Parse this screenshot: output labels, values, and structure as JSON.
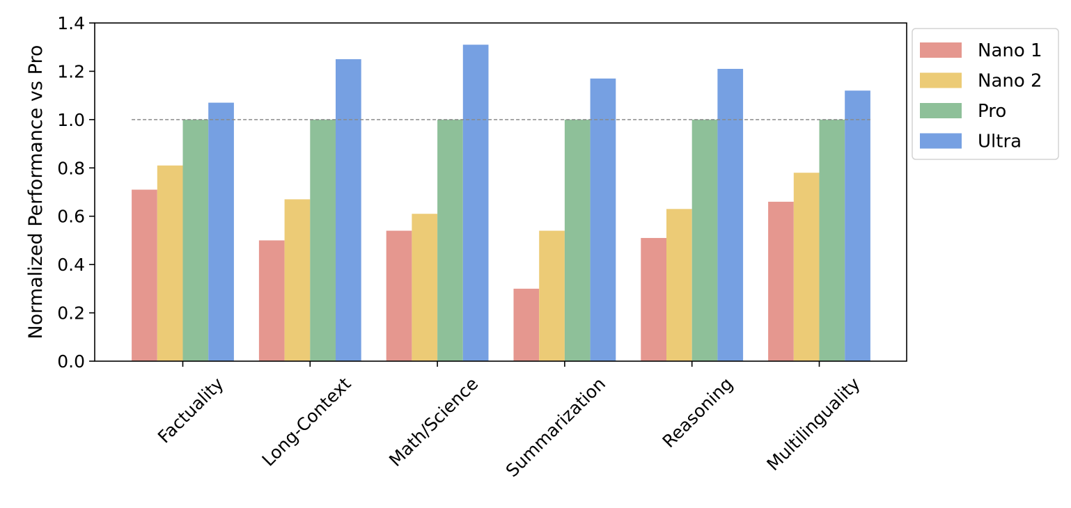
{
  "chart_data": {
    "type": "bar",
    "ylabel": "Normalized Performance vs Pro",
    "xlabel": "",
    "ylim": [
      0,
      1.4
    ],
    "yticks": [
      "0.0",
      "0.2",
      "0.4",
      "0.6",
      "0.8",
      "1.0",
      "1.2",
      "1.4"
    ],
    "reference_line": 1.0,
    "legend_position": "outside-top-right",
    "categories": [
      "Factuality",
      "Long-Context",
      "Math/Science",
      "Summarization",
      "Reasoning",
      "Multilinguality"
    ],
    "series": [
      {
        "name": "Nano 1",
        "color": "#e5978f",
        "values": [
          0.71,
          0.5,
          0.54,
          0.3,
          0.51,
          0.66
        ]
      },
      {
        "name": "Nano 2",
        "color": "#eccb76",
        "values": [
          0.81,
          0.67,
          0.61,
          0.54,
          0.63,
          0.78
        ]
      },
      {
        "name": "Pro",
        "color": "#8ec099",
        "values": [
          1.0,
          1.0,
          1.0,
          1.0,
          1.0,
          1.0
        ]
      },
      {
        "name": "Ultra",
        "color": "#76a0e2",
        "values": [
          1.07,
          1.25,
          1.31,
          1.17,
          1.21,
          1.12
        ]
      }
    ]
  }
}
